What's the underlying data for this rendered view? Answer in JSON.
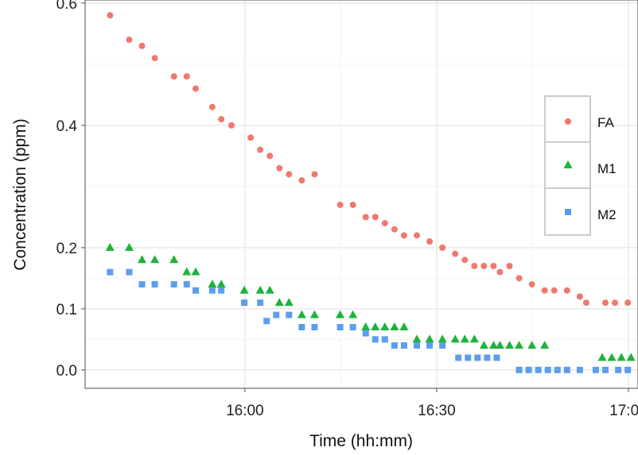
{
  "chart_data": {
    "type": "scatter",
    "title": "",
    "xlabel": "Time (hh:mm)",
    "ylabel": "Concentration (ppm)",
    "x_unit": "minutes",
    "x_ticks": [
      {
        "value": 960,
        "label": "16:00"
      },
      {
        "value": 990,
        "label": "16:30"
      },
      {
        "value": 1020,
        "label": "17:00"
      }
    ],
    "y_ticks": [
      {
        "value": 0.0,
        "label": "0.0"
      },
      {
        "value": 0.1,
        "label": "0.1"
      },
      {
        "value": 0.2,
        "label": "0.2"
      },
      {
        "value": 0.4,
        "label": "0.4"
      },
      {
        "value": 0.6,
        "label": "0.6"
      }
    ],
    "xlim": [
      935,
      1021.5
    ],
    "ylim": [
      -0.03,
      0.605
    ],
    "grid": true,
    "legend_position": "right",
    "series": [
      {
        "name": "FA",
        "marker": "circle",
        "color": "#F0786E",
        "points": [
          [
            938.9,
            0.58
          ],
          [
            941.9,
            0.54
          ],
          [
            943.9,
            0.53
          ],
          [
            945.9,
            0.51
          ],
          [
            948.9,
            0.48
          ],
          [
            950.9,
            0.48
          ],
          [
            952.3,
            0.46
          ],
          [
            954.9,
            0.43
          ],
          [
            956.3,
            0.41
          ],
          [
            957.9,
            0.4
          ],
          [
            960.9,
            0.38
          ],
          [
            962.4,
            0.36
          ],
          [
            963.9,
            0.35
          ],
          [
            965.4,
            0.33
          ],
          [
            966.9,
            0.32
          ],
          [
            968.9,
            0.31
          ],
          [
            970.9,
            0.32
          ],
          [
            974.9,
            0.27
          ],
          [
            976.9,
            0.27
          ],
          [
            978.9,
            0.25
          ],
          [
            980.4,
            0.25
          ],
          [
            981.9,
            0.24
          ],
          [
            983.4,
            0.23
          ],
          [
            984.9,
            0.22
          ],
          [
            986.9,
            0.22
          ],
          [
            988.9,
            0.21
          ],
          [
            990.9,
            0.2
          ],
          [
            992.9,
            0.19
          ],
          [
            994.4,
            0.18
          ],
          [
            995.9,
            0.17
          ],
          [
            997.4,
            0.17
          ],
          [
            998.9,
            0.17
          ],
          [
            999.9,
            0.16
          ],
          [
            1001.4,
            0.17
          ],
          [
            1002.9,
            0.15
          ],
          [
            1004.9,
            0.14
          ],
          [
            1006.9,
            0.13
          ],
          [
            1008.4,
            0.13
          ],
          [
            1010.4,
            0.13
          ],
          [
            1012.4,
            0.12
          ],
          [
            1013.4,
            0.11
          ],
          [
            1016.4,
            0.11
          ],
          [
            1017.9,
            0.11
          ],
          [
            1019.9,
            0.11
          ]
        ]
      },
      {
        "name": "M1",
        "marker": "triangle",
        "color": "#1DB33B",
        "points": [
          [
            938.9,
            0.2
          ],
          [
            941.9,
            0.2
          ],
          [
            943.9,
            0.18
          ],
          [
            945.9,
            0.18
          ],
          [
            948.9,
            0.18
          ],
          [
            950.9,
            0.16
          ],
          [
            952.3,
            0.16
          ],
          [
            954.9,
            0.14
          ],
          [
            956.3,
            0.14
          ],
          [
            959.9,
            0.13
          ],
          [
            962.4,
            0.13
          ],
          [
            963.9,
            0.13
          ],
          [
            965.4,
            0.11
          ],
          [
            966.9,
            0.11
          ],
          [
            968.9,
            0.09
          ],
          [
            970.9,
            0.09
          ],
          [
            974.9,
            0.09
          ],
          [
            976.9,
            0.09
          ],
          [
            978.9,
            0.07
          ],
          [
            980.4,
            0.07
          ],
          [
            981.9,
            0.07
          ],
          [
            983.4,
            0.07
          ],
          [
            984.9,
            0.07
          ],
          [
            986.9,
            0.05
          ],
          [
            988.9,
            0.05
          ],
          [
            990.9,
            0.05
          ],
          [
            992.9,
            0.05
          ],
          [
            994.4,
            0.05
          ],
          [
            995.9,
            0.05
          ],
          [
            997.4,
            0.04
          ],
          [
            998.9,
            0.04
          ],
          [
            999.9,
            0.04
          ],
          [
            1001.4,
            0.04
          ],
          [
            1002.9,
            0.04
          ],
          [
            1004.9,
            0.04
          ],
          [
            1006.9,
            0.04
          ],
          [
            1015.9,
            0.02
          ],
          [
            1017.4,
            0.02
          ],
          [
            1018.9,
            0.02
          ],
          [
            1020.4,
            0.02
          ]
        ]
      },
      {
        "name": "M2",
        "marker": "square",
        "color": "#5C9EEC",
        "points": [
          [
            938.9,
            0.16
          ],
          [
            941.9,
            0.16
          ],
          [
            943.9,
            0.14
          ],
          [
            945.9,
            0.14
          ],
          [
            948.9,
            0.14
          ],
          [
            950.9,
            0.14
          ],
          [
            952.3,
            0.13
          ],
          [
            954.9,
            0.13
          ],
          [
            956.3,
            0.13
          ],
          [
            959.9,
            0.11
          ],
          [
            962.4,
            0.11
          ],
          [
            963.4,
            0.08
          ],
          [
            964.9,
            0.09
          ],
          [
            966.9,
            0.09
          ],
          [
            968.9,
            0.07
          ],
          [
            970.9,
            0.07
          ],
          [
            974.9,
            0.07
          ],
          [
            976.9,
            0.07
          ],
          [
            978.9,
            0.06
          ],
          [
            980.4,
            0.05
          ],
          [
            981.9,
            0.05
          ],
          [
            983.4,
            0.04
          ],
          [
            984.9,
            0.04
          ],
          [
            986.9,
            0.04
          ],
          [
            988.9,
            0.04
          ],
          [
            990.9,
            0.04
          ],
          [
            993.4,
            0.02
          ],
          [
            994.9,
            0.02
          ],
          [
            996.4,
            0.02
          ],
          [
            997.9,
            0.02
          ],
          [
            999.4,
            0.02
          ],
          [
            1002.9,
            0.0
          ],
          [
            1004.4,
            0.0
          ],
          [
            1005.9,
            0.0
          ],
          [
            1007.4,
            0.0
          ],
          [
            1008.9,
            0.0
          ],
          [
            1010.4,
            0.0
          ],
          [
            1012.4,
            0.0
          ],
          [
            1014.9,
            0.0
          ],
          [
            1016.4,
            0.0
          ],
          [
            1018.4,
            0.0
          ],
          [
            1019.9,
            0.0
          ]
        ]
      }
    ]
  }
}
